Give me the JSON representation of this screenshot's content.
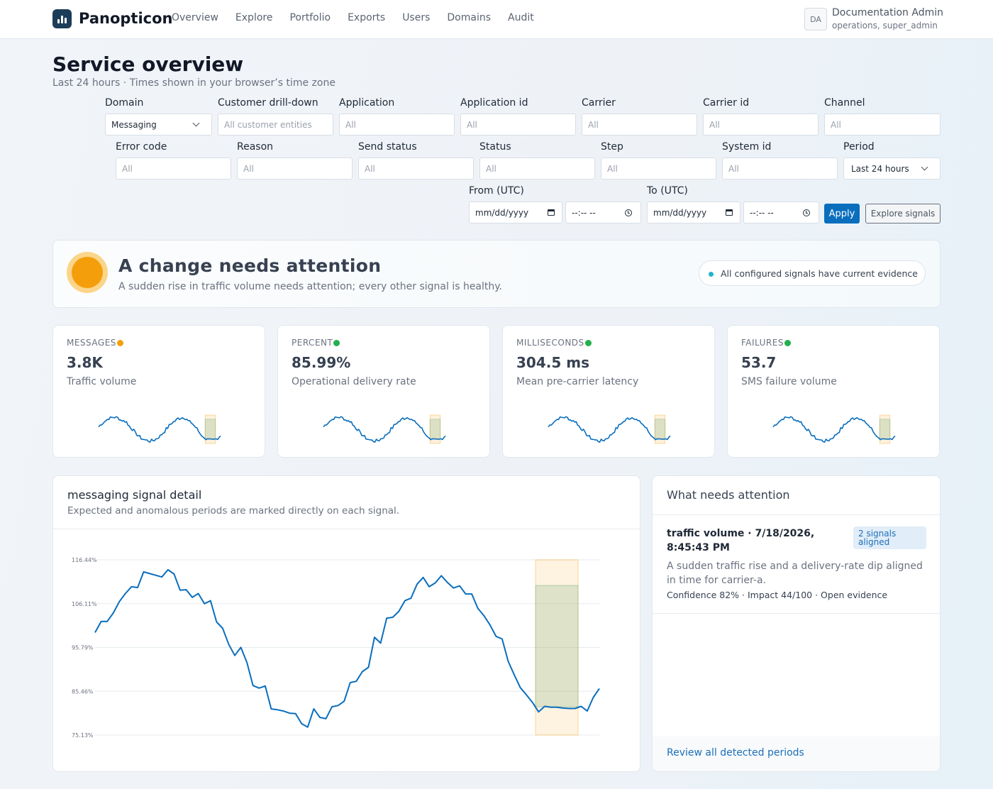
{
  "app": {
    "name": "Panopticon"
  },
  "nav": [
    "Overview",
    "Explore",
    "Portfolio",
    "Exports",
    "Users",
    "Domains",
    "Audit"
  ],
  "user": {
    "initials": "DA",
    "name": "Documentation Admin",
    "roles": "operations, super_admin"
  },
  "header": {
    "title": "Service overview",
    "subtitle": "Last 24 hours · Times shown in your browser’s time zone"
  },
  "filters": {
    "domain": {
      "label": "Domain",
      "value": "Messaging"
    },
    "customer": {
      "label": "Customer drill-down",
      "placeholder": "All customer entities"
    },
    "application": {
      "label": "Application",
      "placeholder": "All"
    },
    "application_id": {
      "label": "Application id",
      "placeholder": "All"
    },
    "carrier": {
      "label": "Carrier",
      "placeholder": "All"
    },
    "carrier_id": {
      "label": "Carrier id",
      "placeholder": "All"
    },
    "channel": {
      "label": "Channel",
      "placeholder": "All"
    },
    "error_code": {
      "label": "Error code",
      "placeholder": "All"
    },
    "reason": {
      "label": "Reason",
      "placeholder": "All"
    },
    "send_status": {
      "label": "Send status",
      "placeholder": "All"
    },
    "status": {
      "label": "Status",
      "placeholder": "All"
    },
    "step": {
      "label": "Step",
      "placeholder": "All"
    },
    "system_id": {
      "label": "System id",
      "placeholder": "All"
    },
    "period": {
      "label": "Period",
      "value": "Last 24 hours"
    },
    "from": {
      "label": "From (UTC)",
      "date_placeholder": "mm/dd/yyyy",
      "time_placeholder": "--:-- --"
    },
    "to": {
      "label": "To (UTC)",
      "date_placeholder": "mm/dd/yyyy",
      "time_placeholder": "--:-- --"
    },
    "apply_label": "Apply",
    "explore_label": "Explore signals"
  },
  "alert": {
    "title": "A change needs attention",
    "description": "A sudden rise in traffic volume needs attention; every other signal is healthy.",
    "pill": "All configured signals have current evidence",
    "color": "#f59e0b"
  },
  "kpis": [
    {
      "unit": "MESSAGES",
      "value": "3.8K",
      "label": "Traffic volume",
      "status_color": "#f59e0b"
    },
    {
      "unit": "PERCENT",
      "value": "85.99%",
      "label": "Operational delivery rate",
      "status_color": "#22b04b"
    },
    {
      "unit": "MILLISECONDS",
      "value": "304.5 ms",
      "label": "Mean pre-carrier latency",
      "status_color": "#22b04b"
    },
    {
      "unit": "FAILURES",
      "value": "53.7",
      "label": "SMS failure volume",
      "status_color": "#22b04b"
    }
  ],
  "detail": {
    "title": "messaging signal detail",
    "subtitle": "Expected and anomalous periods are marked directly on each signal."
  },
  "chart_data": {
    "type": "line",
    "yticks": [
      "116.44%",
      "106.11%",
      "95.79%",
      "85.46%",
      "75.13%"
    ],
    "ylim": [
      75.13,
      116.44
    ],
    "values": [
      99.3,
      101.9,
      101.9,
      103.9,
      106.6,
      108.5,
      110.1,
      109.9,
      113.6,
      113.2,
      112.8,
      112.4,
      114.1,
      113.1,
      109.3,
      109.4,
      107.6,
      108.5,
      106.1,
      106.8,
      101.8,
      100.3,
      96.5,
      93.9,
      95.8,
      92.2,
      86.8,
      86.2,
      86.7,
      81.3,
      81.1,
      80.8,
      80.3,
      80.2,
      77.8,
      77.0,
      81.3,
      79.3,
      79.0,
      81.8,
      82.1,
      83.1,
      87.5,
      87.8,
      90.1,
      91.1,
      98.2,
      96.8,
      102.7,
      102.9,
      104.3,
      106.8,
      107.4,
      110.7,
      112.3,
      110.1,
      111.0,
      112.7,
      111.1,
      109.8,
      110.3,
      108.4,
      108.4,
      105.0,
      103.3,
      101.1,
      98.4,
      97.8,
      92.5,
      89.3,
      86.3,
      84.6,
      82.8,
      80.6,
      81.9,
      81.7,
      81.7,
      81.5,
      81.4,
      81.4,
      81.9,
      80.8,
      84.0,
      86.1
    ],
    "expected_band": {
      "start_index": 73,
      "end_index": 79,
      "y_range": [
        75.13,
        116.44
      ],
      "color": "#f59e0b"
    },
    "anomaly_band": {
      "start_index": 73,
      "end_index": 79,
      "y_range": [
        81.8,
        110.4
      ],
      "color": "#8db88a"
    },
    "line_color": "#0a6ebd"
  },
  "attention": {
    "title": "What needs attention",
    "item": {
      "title": "traffic volume · 7/18/2026, 8:45:43 PM",
      "badge": "2 signals aligned",
      "description": "A sudden traffic rise and a delivery-rate dip aligned in time for carrier-a.",
      "meta": "Confidence 82% · Impact 44/100 · Open evidence"
    },
    "link": "Review all detected periods"
  }
}
